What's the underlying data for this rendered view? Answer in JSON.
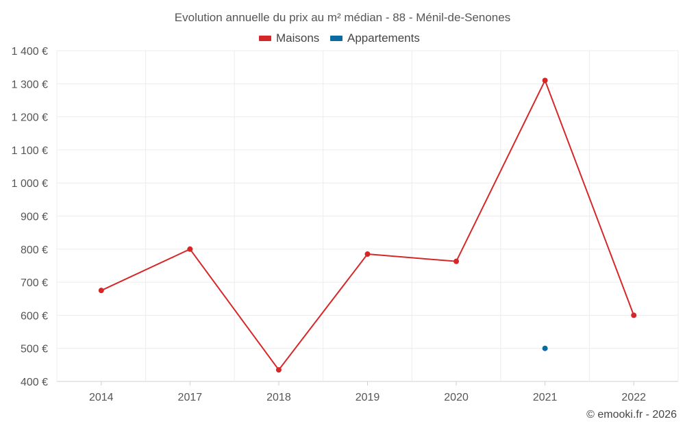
{
  "chart_data": {
    "type": "line",
    "title": "Evolution annuelle du prix au m² médian - 88 - Ménil-de-Senones",
    "categories": [
      "2014",
      "2017",
      "2018",
      "2019",
      "2020",
      "2021",
      "2022"
    ],
    "series": [
      {
        "name": "Maisons",
        "color": "#d62728",
        "values": [
          675,
          800,
          435,
          785,
          763,
          1310,
          600
        ]
      },
      {
        "name": "Appartements",
        "color": "#0b6aa2",
        "values": [
          null,
          null,
          null,
          null,
          null,
          500,
          null
        ]
      }
    ],
    "ylim": [
      400,
      1400
    ],
    "yticks": [
      400,
      500,
      600,
      700,
      800,
      900,
      1000,
      1100,
      1200,
      1300,
      1400
    ],
    "ytick_labels": [
      "400 €",
      "500 €",
      "600 €",
      "700 €",
      "800 €",
      "900 €",
      "1 000 €",
      "1 100 €",
      "1 200 €",
      "1 300 €",
      "1 400 €"
    ],
    "xlabel": "",
    "ylabel": "",
    "grid": true,
    "legend_position": "top-center"
  },
  "credit": "© emooki.fr - 2026"
}
